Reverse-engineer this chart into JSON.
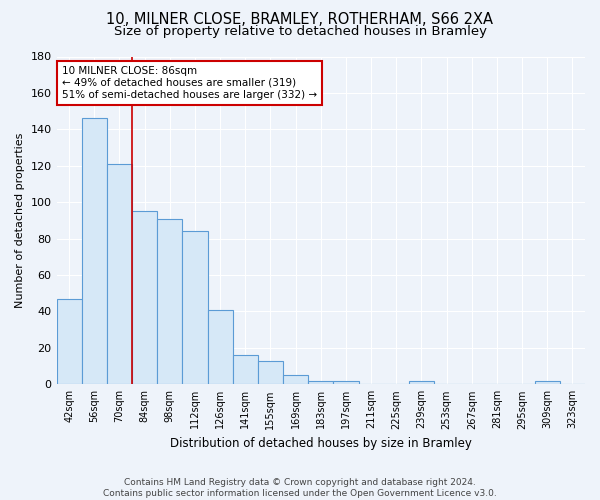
{
  "title1": "10, MILNER CLOSE, BRAMLEY, ROTHERHAM, S66 2XA",
  "title2": "Size of property relative to detached houses in Bramley",
  "xlabel": "Distribution of detached houses by size in Bramley",
  "ylabel": "Number of detached properties",
  "categories": [
    "42sqm",
    "56sqm",
    "70sqm",
    "84sqm",
    "98sqm",
    "112sqm",
    "126sqm",
    "141sqm",
    "155sqm",
    "169sqm",
    "183sqm",
    "197sqm",
    "211sqm",
    "225sqm",
    "239sqm",
    "253sqm",
    "267sqm",
    "281sqm",
    "295sqm",
    "309sqm",
    "323sqm"
  ],
  "values": [
    47,
    146,
    121,
    95,
    91,
    84,
    41,
    16,
    13,
    5,
    2,
    2,
    0,
    0,
    2,
    0,
    0,
    0,
    0,
    2,
    0
  ],
  "bar_color": "#d6e8f7",
  "bar_edge_color": "#5b9bd5",
  "property_label": "10 MILNER CLOSE: 86sqm",
  "annotation_line1": "← 49% of detached houses are smaller (319)",
  "annotation_line2": "51% of semi-detached houses are larger (332) →",
  "annotation_box_color": "#ffffff",
  "annotation_box_edge": "#cc0000",
  "vline_color": "#cc0000",
  "ylim": [
    0,
    180
  ],
  "yticks": [
    0,
    20,
    40,
    60,
    80,
    100,
    120,
    140,
    160,
    180
  ],
  "bg_color": "#eef3fa",
  "grid_color": "#ffffff",
  "footer": "Contains HM Land Registry data © Crown copyright and database right 2024.\nContains public sector information licensed under the Open Government Licence v3.0.",
  "title1_fontsize": 10.5,
  "title2_fontsize": 9.5,
  "bin_width": 14
}
